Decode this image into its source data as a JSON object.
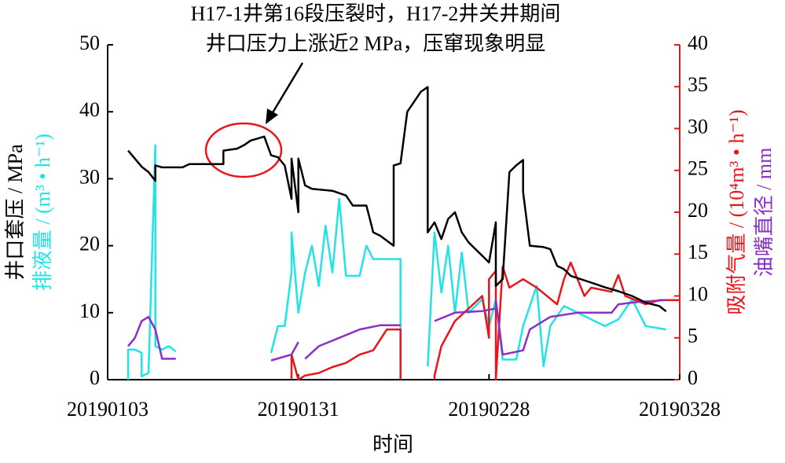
{
  "chart_data": {
    "type": "line",
    "annotation": [
      "H17-1井第16段压裂时，H17-2井关井期间",
      "井口压力上涨近2 MPa，压窜现象明显"
    ],
    "xlabel": "时间",
    "xlim": [
      "2019-01-03",
      "2019-03-28"
    ],
    "xticks": [
      {
        "value": "2019-01-03",
        "label": "20190103"
      },
      {
        "value": "2019-01-31",
        "label": "20190131"
      },
      {
        "value": "2019-02-28",
        "label": "20190228"
      },
      {
        "value": "2019-03-28",
        "label": "20190328"
      }
    ],
    "ylim": [
      0,
      50
    ],
    "yticks": [
      0,
      10,
      20,
      30,
      40,
      50
    ],
    "y2lim": [
      0,
      40
    ],
    "y2ticks": [
      0,
      5,
      10,
      15,
      20,
      25,
      30,
      35,
      40
    ],
    "series": [
      {
        "name": "井口套压 / MPa",
        "color": "#000000",
        "x": [
          "2019-01-06",
          "2019-01-07",
          "2019-01-08",
          "2019-01-09",
          "2019-01-10",
          "2019-01-10",
          "2019-01-11",
          "2019-01-14",
          "2019-01-15",
          "2019-01-20",
          "2019-01-20",
          "2019-01-22",
          "2019-01-23",
          "2019-01-24",
          "2019-01-25",
          "2019-01-26",
          "2019-01-27",
          "2019-01-28",
          "2019-01-29",
          "2019-01-30",
          "2019-01-30",
          "2019-01-31",
          "2019-01-31",
          "2019-02-01",
          "2019-02-02",
          "2019-02-05",
          "2019-02-07",
          "2019-02-08",
          "2019-02-10",
          "2019-02-11",
          "2019-02-12",
          "2019-02-14",
          "2019-02-14",
          "2019-02-15",
          "2019-02-16",
          "2019-02-17",
          "2019-02-18",
          "2019-02-19",
          "2019-02-19",
          "2019-02-20",
          "2019-02-21",
          "2019-02-22",
          "2019-02-23",
          "2019-02-24",
          "2019-02-25",
          "2019-02-26",
          "2019-02-27",
          "2019-02-28",
          "2019-03-01",
          "2019-03-01",
          "2019-03-02",
          "2019-03-03",
          "2019-03-04",
          "2019-03-05",
          "2019-03-05",
          "2019-03-06",
          "2019-03-08",
          "2019-03-09",
          "2019-03-10",
          "2019-03-11",
          "2019-03-12",
          "2019-03-15",
          "2019-03-17",
          "2019-03-19",
          "2019-03-21",
          "2019-03-23",
          "2019-03-25",
          "2019-03-26"
        ],
        "values": [
          34.2,
          33,
          31.8,
          31,
          29.7,
          32,
          31.7,
          31.7,
          32.2,
          32.2,
          34.2,
          34.5,
          35,
          35.7,
          36,
          36.3,
          33.5,
          33.2,
          32,
          27,
          33,
          25,
          33,
          29,
          28.5,
          28.2,
          27.5,
          26,
          26,
          22,
          21.5,
          20,
          32,
          32.3,
          40,
          41.5,
          43,
          43.7,
          22,
          23.5,
          21,
          24,
          25,
          22,
          20.5,
          19.5,
          18.5,
          17.5,
          23.5,
          14,
          15,
          31,
          32,
          32.8,
          28,
          20,
          19.8,
          19.5,
          17,
          16.5,
          15.5,
          14.5,
          13.8,
          13.2,
          12.5,
          11.5,
          11,
          10.2
        ]
      },
      {
        "name": "排液量 / (m³ • h⁻¹)",
        "color": "#22e3e6",
        "x": [
          "2019-01-06",
          "2019-01-06",
          "2019-01-07",
          "2019-01-08",
          "2019-01-08",
          "2019-01-09",
          "2019-01-10",
          "2019-01-10",
          "2019-01-11",
          "2019-01-12",
          "2019-01-13",
          "2019-01-20",
          "2019-01-27",
          "2019-01-28",
          "2019-01-29",
          "2019-01-30",
          "2019-01-30",
          "2019-01-31",
          "2019-02-01",
          "2019-02-02",
          "2019-02-03",
          "2019-02-04",
          "2019-02-05",
          "2019-02-06",
          "2019-02-07",
          "2019-02-09",
          "2019-02-10",
          "2019-02-11",
          "2019-02-15",
          "2019-02-15",
          "2019-02-17",
          "2019-02-19",
          "2019-02-20",
          "2019-02-21",
          "2019-02-22",
          "2019-02-23",
          "2019-02-24",
          "2019-02-25",
          "2019-02-27",
          "2019-02-28",
          "2019-03-01",
          "2019-03-02",
          "2019-03-04",
          "2019-03-05",
          "2019-03-07",
          "2019-03-08",
          "2019-03-09",
          "2019-03-11",
          "2019-03-13",
          "2019-03-15",
          "2019-03-17",
          "2019-03-19",
          "2019-03-21",
          "2019-03-23",
          "2019-03-26"
        ],
        "values": [
          0,
          4.5,
          4.5,
          4,
          0.5,
          1,
          35,
          5,
          4.5,
          5,
          4.2,
          null,
          4,
          8,
          8,
          16,
          22,
          10,
          16,
          20,
          14,
          23,
          16,
          27,
          15.5,
          15.5,
          20,
          18,
          18,
          2,
          null,
          2,
          22,
          13,
          20,
          10,
          19,
          10,
          12,
          8,
          12,
          3,
          3,
          8,
          14,
          2,
          8,
          11,
          10,
          9,
          8,
          9,
          12,
          8,
          7.5
        ]
      },
      {
        "name": "吸附气量 / (10⁴m³ • h⁻¹)",
        "color": "#e8161b",
        "axis": "y2",
        "x": [
          "2019-01-30",
          "2019-01-30",
          "2019-01-31",
          "2019-02-01",
          "2019-02-03",
          "2019-02-05",
          "2019-02-07",
          "2019-02-09",
          "2019-02-11",
          "2019-02-13",
          "2019-02-15",
          "2019-02-15",
          "2019-02-17",
          "2019-02-20",
          "2019-02-20",
          "2019-02-21",
          "2019-02-23",
          "2019-02-25",
          "2019-02-27",
          "2019-02-28",
          "2019-02-28",
          "2019-03-01",
          "2019-03-01",
          "2019-03-02",
          "2019-03-03",
          "2019-03-05",
          "2019-03-07",
          "2019-03-10",
          "2019-03-11",
          "2019-03-12",
          "2019-03-14",
          "2019-03-15",
          "2019-03-18",
          "2019-03-19",
          "2019-03-20",
          "2019-03-23",
          "2019-03-25",
          "2019-03-28"
        ],
        "values": [
          0,
          3,
          0,
          0.5,
          0.8,
          1.5,
          2,
          3,
          3.5,
          6,
          6,
          0,
          null,
          0,
          0.5,
          4,
          7,
          8.5,
          10,
          5,
          12,
          13,
          0,
          13.5,
          11,
          12,
          11,
          9,
          12,
          14,
          10,
          11,
          10.5,
          12.5,
          10,
          9,
          9.5,
          9.5
        ]
      },
      {
        "name": "油嘴直径 / mm",
        "color": "#8b2fc9",
        "axis": "y2",
        "x": [
          "2019-01-06",
          "2019-01-07",
          "2019-01-08",
          "2019-01-09",
          "2019-01-10",
          "2019-01-11",
          "2019-01-13",
          "2019-01-20",
          "2019-01-27",
          "2019-01-30",
          "2019-01-31",
          "2019-01-31",
          "2019-02-01",
          "2019-02-03",
          "2019-02-06",
          "2019-02-09",
          "2019-02-12",
          "2019-02-15",
          "2019-02-17",
          "2019-02-20",
          "2019-02-23",
          "2019-02-27",
          "2019-03-01",
          "2019-03-01",
          "2019-03-02",
          "2019-03-05",
          "2019-03-06",
          "2019-03-09",
          "2019-03-13",
          "2019-03-18",
          "2019-03-19",
          "2019-03-22",
          "2019-03-26"
        ],
        "values": [
          4,
          5,
          7,
          7.5,
          6,
          2.5,
          2.5,
          null,
          2.3,
          3,
          4.5,
          null,
          2.5,
          4,
          5,
          6,
          6.5,
          6.5,
          null,
          7,
          8,
          8.2,
          8.5,
          9.5,
          3,
          3.5,
          6,
          7.5,
          8,
          8,
          9,
          9.3,
          9.5
        ]
      }
    ]
  }
}
